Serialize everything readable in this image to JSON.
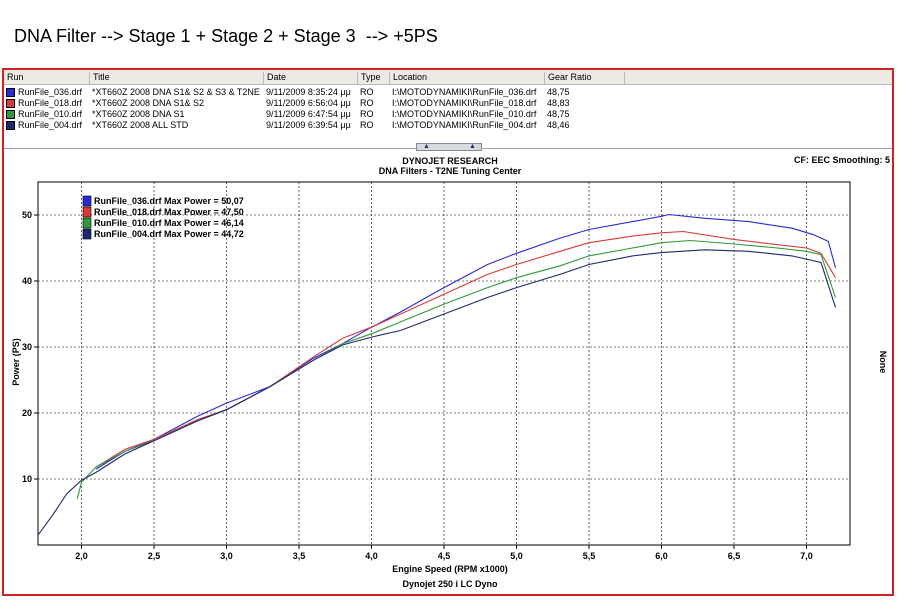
{
  "caption": "DNA Filter --> Stage 1 + Stage 2 + Stage 3  --> +5PS",
  "runs_table": {
    "headers": [
      "Run",
      "Title",
      "Date",
      "Type",
      "Location",
      "Gear Ratio"
    ],
    "rows": [
      {
        "run": "RunFile_036.drf",
        "title": "*XT660Z 2008 DNA S1& S2 & S3 & T2NE",
        "date": "9/11/2009 8:35:24 μμ",
        "type": "RO",
        "location": "I:\\MOTODYNAMIKI\\RunFile_036.drf",
        "gear": "48,75",
        "color": "#2a2ad8"
      },
      {
        "run": "RunFile_018.drf",
        "title": "*XT660Z 2008 DNA S1& S2",
        "date": "9/11/2009 6:56:04 μμ",
        "type": "RO",
        "location": "I:\\MOTODYNAMIKI\\RunFile_018.drf",
        "gear": "48,83",
        "color": "#d83a3a"
      },
      {
        "run": "RunFile_010.drf",
        "title": "*XT660Z 2008 DNA S1",
        "date": "9/11/2009 6:47:54 μμ",
        "type": "RO",
        "location": "I:\\MOTODYNAMIKI\\RunFile_010.drf",
        "gear": "48,75",
        "color": "#2f9a3a"
      },
      {
        "run": "RunFile_004.drf",
        "title": "*XT660Z 2008 ALL STD",
        "date": "9/11/2009 6:39:54 μμ",
        "type": "RO",
        "location": "I:\\MOTODYNAMIKI\\RunFile_004.drf",
        "gear": "48,46",
        "color": "#1e2870"
      }
    ]
  },
  "chart_data": {
    "type": "line",
    "title": "DYNOJET RESEARCH",
    "subtitle": "DNA Filters - T2NE Tuning Center",
    "corner_note": "CF: EEC  Smoothing: 5",
    "xlabel": "Engine Speed (RPM x1000)",
    "ylabel": "Power (PS)",
    "right_label": "None",
    "footer": "Dynojet 250 i LC Dyno",
    "xlim": [
      1.7,
      7.3
    ],
    "ylim": [
      0,
      55
    ],
    "x_ticks": [
      "2,0",
      "2,5",
      "3,0",
      "3,5",
      "4,0",
      "4,5",
      "5,0",
      "5,5",
      "6,0",
      "6,5",
      "7,0"
    ],
    "x_tick_values": [
      2.0,
      2.5,
      3.0,
      3.5,
      4.0,
      4.5,
      5.0,
      5.5,
      6.0,
      6.5,
      7.0
    ],
    "y_ticks": [
      "10",
      "20",
      "30",
      "40",
      "50"
    ],
    "y_tick_values": [
      10,
      20,
      30,
      40,
      50
    ],
    "grid": true,
    "legend_position": "top-left",
    "series": [
      {
        "name": "RunFile_036.drf",
        "legend": "RunFile_036.drf Max Power = 50,07",
        "color": "#2a2ad8",
        "points": [
          [
            2.1,
            11.5
          ],
          [
            2.3,
            14.2
          ],
          [
            2.5,
            16.0
          ],
          [
            2.8,
            19.5
          ],
          [
            3.0,
            21.5
          ],
          [
            3.3,
            24.0
          ],
          [
            3.6,
            28.3
          ],
          [
            3.8,
            30.5
          ],
          [
            4.0,
            33.0
          ],
          [
            4.2,
            35.3
          ],
          [
            4.5,
            39.0
          ],
          [
            4.8,
            42.5
          ],
          [
            5.0,
            44.2
          ],
          [
            5.3,
            46.5
          ],
          [
            5.5,
            47.8
          ],
          [
            5.8,
            49.0
          ],
          [
            6.0,
            49.8
          ],
          [
            6.05,
            50.07
          ],
          [
            6.3,
            49.5
          ],
          [
            6.6,
            49.0
          ],
          [
            6.9,
            48.0
          ],
          [
            7.05,
            47.0
          ],
          [
            7.15,
            46.0
          ],
          [
            7.2,
            42.0
          ]
        ]
      },
      {
        "name": "RunFile_018.drf",
        "legend": "RunFile_018.drf Max Power = 47,50",
        "color": "#d83a3a",
        "points": [
          [
            2.1,
            11.8
          ],
          [
            2.3,
            14.5
          ],
          [
            2.5,
            16.0
          ],
          [
            2.8,
            19.0
          ],
          [
            3.0,
            20.5
          ],
          [
            3.3,
            24.0
          ],
          [
            3.6,
            28.5
          ],
          [
            3.8,
            31.3
          ],
          [
            4.0,
            33.0
          ],
          [
            4.2,
            35.0
          ],
          [
            4.5,
            38.0
          ],
          [
            4.8,
            41.0
          ],
          [
            5.0,
            42.5
          ],
          [
            5.3,
            44.5
          ],
          [
            5.5,
            45.8
          ],
          [
            5.8,
            46.8
          ],
          [
            6.0,
            47.3
          ],
          [
            6.15,
            47.5
          ],
          [
            6.5,
            46.3
          ],
          [
            6.8,
            45.5
          ],
          [
            7.0,
            45.0
          ],
          [
            7.1,
            44.2
          ],
          [
            7.2,
            40.5
          ]
        ]
      },
      {
        "name": "RunFile_010.drf",
        "legend": "RunFile_010.drf Max Power = 46,14",
        "color": "#2f9a3a",
        "points": [
          [
            1.97,
            7.0
          ],
          [
            2.0,
            9.5
          ],
          [
            2.1,
            11.8
          ],
          [
            2.3,
            14.2
          ],
          [
            2.5,
            15.8
          ],
          [
            2.8,
            18.8
          ],
          [
            3.0,
            20.5
          ],
          [
            3.3,
            24.0
          ],
          [
            3.6,
            28.0
          ],
          [
            3.8,
            30.5
          ],
          [
            4.0,
            32.0
          ],
          [
            4.2,
            33.8
          ],
          [
            4.5,
            36.5
          ],
          [
            4.8,
            39.0
          ],
          [
            5.0,
            40.5
          ],
          [
            5.3,
            42.3
          ],
          [
            5.5,
            43.8
          ],
          [
            5.8,
            45.0
          ],
          [
            6.0,
            45.8
          ],
          [
            6.2,
            46.14
          ],
          [
            6.5,
            45.6
          ],
          [
            6.8,
            45.0
          ],
          [
            7.0,
            44.5
          ],
          [
            7.1,
            44.0
          ],
          [
            7.2,
            37.5
          ]
        ]
      },
      {
        "name": "RunFile_004.drf",
        "legend": "RunFile_004.drf Max Power = 44,72",
        "color": "#1e2870",
        "points": [
          [
            1.7,
            1.5
          ],
          [
            1.8,
            4.5
          ],
          [
            1.9,
            7.8
          ],
          [
            2.0,
            9.8
          ],
          [
            2.1,
            11.0
          ],
          [
            2.3,
            13.8
          ],
          [
            2.5,
            15.8
          ],
          [
            2.8,
            18.8
          ],
          [
            3.0,
            20.5
          ],
          [
            3.3,
            24.0
          ],
          [
            3.6,
            28.0
          ],
          [
            3.8,
            30.3
          ],
          [
            4.0,
            31.5
          ],
          [
            4.2,
            32.5
          ],
          [
            4.5,
            35.0
          ],
          [
            4.8,
            37.5
          ],
          [
            5.0,
            39.0
          ],
          [
            5.3,
            41.0
          ],
          [
            5.5,
            42.5
          ],
          [
            5.8,
            43.8
          ],
          [
            6.0,
            44.3
          ],
          [
            6.3,
            44.72
          ],
          [
            6.6,
            44.5
          ],
          [
            6.9,
            43.8
          ],
          [
            7.1,
            42.8
          ],
          [
            7.2,
            36.0
          ]
        ]
      }
    ]
  }
}
